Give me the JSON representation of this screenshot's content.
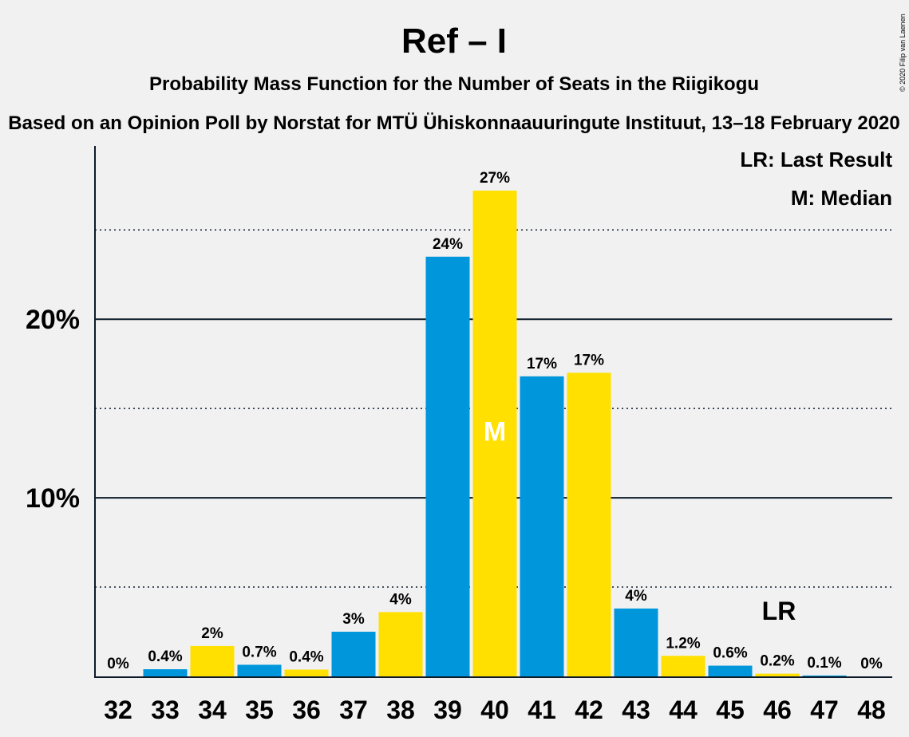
{
  "chart_data": {
    "type": "bar",
    "title": "Ref – I",
    "subtitle": "Probability Mass Function for the Number of Seats in the Riigikogu",
    "source": "Based on an Opinion Poll by Norstat for MTÜ Ühiskonnaauuringute Instituut, 13–18 February 2020",
    "copyright": "© 2020 Filip van Laenen",
    "categories": [
      "32",
      "33",
      "34",
      "35",
      "36",
      "37",
      "38",
      "39",
      "40",
      "41",
      "42",
      "43",
      "44",
      "45",
      "46",
      "47",
      "48"
    ],
    "values": [
      0,
      0.4,
      1.7,
      0.65,
      0.38,
      2.5,
      3.6,
      23.5,
      27.2,
      16.8,
      17.0,
      3.8,
      1.15,
      0.6,
      0.15,
      0.05,
      0
    ],
    "labels": [
      "0%",
      "0.4%",
      "2%",
      "0.7%",
      "0.4%",
      "3%",
      "4%",
      "24%",
      "27%",
      "17%",
      "17%",
      "4%",
      "1.2%",
      "0.6%",
      "0.2%",
      "0.1%",
      "0%"
    ],
    "ylim": [
      0,
      29.7
    ],
    "yticks": [
      10,
      20
    ],
    "ytick_labels": [
      "10%",
      "20%"
    ],
    "dotted_lines": [
      5,
      15,
      25
    ],
    "median_category": "40",
    "median_marker": "M",
    "last_result_category": "46",
    "last_result_marker": "LR",
    "legend": [
      "LR: Last Result",
      "M: Median"
    ],
    "legend_position": "top-right",
    "colors": {
      "blue": "#0096db",
      "yellow": "#ffe000",
      "text": "#0d1b2a",
      "background": "#f1f1f1"
    }
  }
}
